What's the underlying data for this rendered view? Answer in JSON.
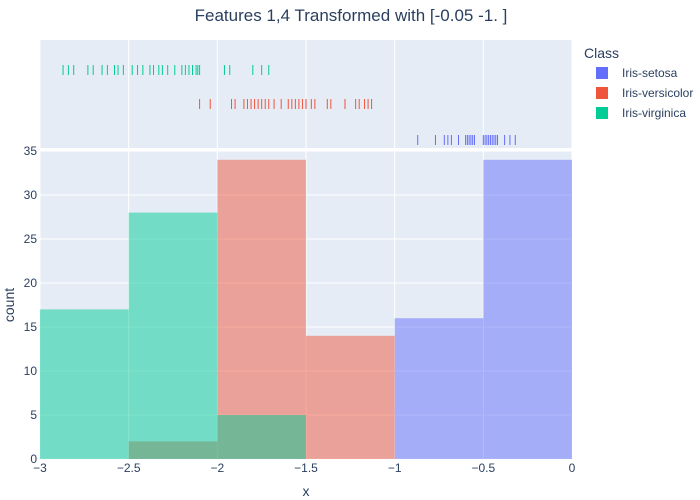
{
  "chart_data": {
    "type": "histogram",
    "title": "Features 1,4 Transformed with [-0.05 -1.  ]",
    "xlabel": "x",
    "ylabel": "count",
    "xlim": [
      -3,
      0
    ],
    "ylim": [
      0,
      35
    ],
    "x_ticks": [
      "−3",
      "−2.5",
      "−2",
      "−1.5",
      "−1",
      "−0.5",
      "0"
    ],
    "y_ticks": [
      "0",
      "5",
      "10",
      "15",
      "20",
      "25",
      "30",
      "35"
    ],
    "grid": true,
    "barmode": "overlay",
    "legend": {
      "title": "Class",
      "position": "top-right"
    },
    "series": [
      {
        "name": "Iris-setosa",
        "color": "#636efa",
        "bins": [
          {
            "x0": -1.0,
            "x1": -0.5,
            "count": 16
          },
          {
            "x0": -0.5,
            "x1": 0.0,
            "count": 34
          }
        ],
        "rug": [
          -0.87,
          -0.77,
          -0.72,
          -0.7,
          -0.68,
          -0.64,
          -0.6,
          -0.59,
          -0.58,
          -0.57,
          -0.56,
          -0.55,
          -0.5,
          -0.49,
          -0.48,
          -0.47,
          -0.46,
          -0.45,
          -0.44,
          -0.43,
          -0.42,
          -0.38,
          -0.35,
          -0.32
        ]
      },
      {
        "name": "Iris-versicolor",
        "color": "#ef553b",
        "bins": [
          {
            "x0": -2.5,
            "x1": -2.0,
            "count": 2
          },
          {
            "x0": -2.0,
            "x1": -1.5,
            "count": 34
          },
          {
            "x0": -1.5,
            "x1": -1.0,
            "count": 14
          }
        ],
        "rug": [
          -2.1,
          -2.04,
          -1.92,
          -1.9,
          -1.85,
          -1.83,
          -1.81,
          -1.79,
          -1.77,
          -1.75,
          -1.73,
          -1.71,
          -1.68,
          -1.64,
          -1.6,
          -1.58,
          -1.56,
          -1.54,
          -1.52,
          -1.5,
          -1.47,
          -1.45,
          -1.38,
          -1.36,
          -1.28,
          -1.22,
          -1.2,
          -1.17,
          -1.15,
          -1.13
        ]
      },
      {
        "name": "Iris-virginica",
        "color": "#00cc96",
        "bins": [
          {
            "x0": -3.0,
            "x1": -2.5,
            "count": 17
          },
          {
            "x0": -2.5,
            "x1": -2.0,
            "count": 28
          },
          {
            "x0": -2.0,
            "x1": -1.5,
            "count": 5
          }
        ],
        "rug": [
          -2.87,
          -2.84,
          -2.81,
          -2.73,
          -2.7,
          -2.65,
          -2.62,
          -2.58,
          -2.56,
          -2.53,
          -2.48,
          -2.45,
          -2.42,
          -2.38,
          -2.36,
          -2.33,
          -2.31,
          -2.28,
          -2.24,
          -2.2,
          -2.18,
          -2.16,
          -2.14,
          -2.12,
          -2.11,
          -2.1,
          -1.96,
          -1.93,
          -1.8,
          -1.75,
          -1.71
        ]
      }
    ]
  }
}
